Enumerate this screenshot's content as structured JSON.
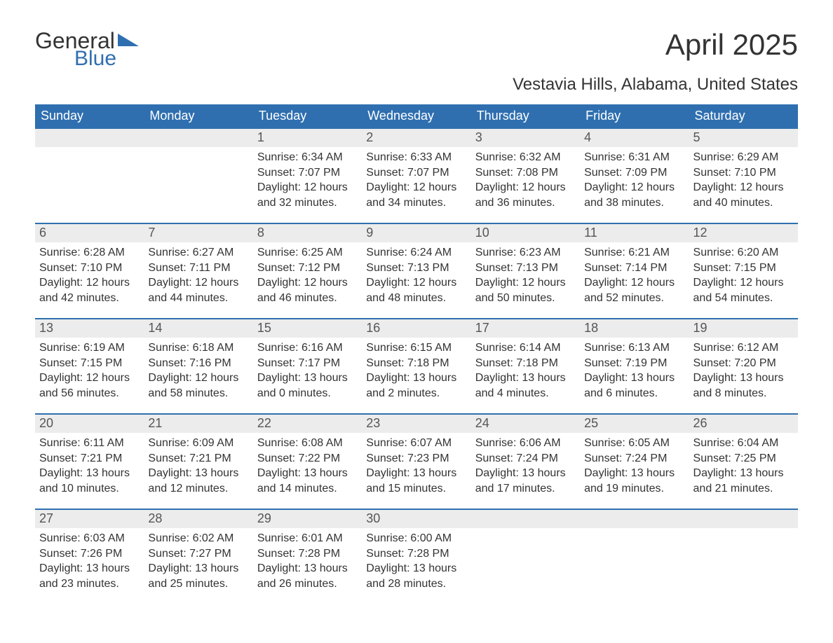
{
  "logo": {
    "text1": "General",
    "text2": "Blue",
    "tri_color": "#2f6fb0"
  },
  "title": "April 2025",
  "subtitle": "Vestavia Hills, Alabama, United States",
  "colors": {
    "header_bg": "#2f6fb0",
    "header_text": "#ffffff",
    "daynum_bg": "#ececec",
    "daynum_border": "#2f6fb0",
    "body_text": "#333333",
    "page_bg": "#ffffff"
  },
  "weekdays": [
    "Sunday",
    "Monday",
    "Tuesday",
    "Wednesday",
    "Thursday",
    "Friday",
    "Saturday"
  ],
  "weeks": [
    [
      null,
      null,
      {
        "n": "1",
        "sunrise": "6:34 AM",
        "sunset": "7:07 PM",
        "dl": "12 hours and 32 minutes."
      },
      {
        "n": "2",
        "sunrise": "6:33 AM",
        "sunset": "7:07 PM",
        "dl": "12 hours and 34 minutes."
      },
      {
        "n": "3",
        "sunrise": "6:32 AM",
        "sunset": "7:08 PM",
        "dl": "12 hours and 36 minutes."
      },
      {
        "n": "4",
        "sunrise": "6:31 AM",
        "sunset": "7:09 PM",
        "dl": "12 hours and 38 minutes."
      },
      {
        "n": "5",
        "sunrise": "6:29 AM",
        "sunset": "7:10 PM",
        "dl": "12 hours and 40 minutes."
      }
    ],
    [
      {
        "n": "6",
        "sunrise": "6:28 AM",
        "sunset": "7:10 PM",
        "dl": "12 hours and 42 minutes."
      },
      {
        "n": "7",
        "sunrise": "6:27 AM",
        "sunset": "7:11 PM",
        "dl": "12 hours and 44 minutes."
      },
      {
        "n": "8",
        "sunrise": "6:25 AM",
        "sunset": "7:12 PM",
        "dl": "12 hours and 46 minutes."
      },
      {
        "n": "9",
        "sunrise": "6:24 AM",
        "sunset": "7:13 PM",
        "dl": "12 hours and 48 minutes."
      },
      {
        "n": "10",
        "sunrise": "6:23 AM",
        "sunset": "7:13 PM",
        "dl": "12 hours and 50 minutes."
      },
      {
        "n": "11",
        "sunrise": "6:21 AM",
        "sunset": "7:14 PM",
        "dl": "12 hours and 52 minutes."
      },
      {
        "n": "12",
        "sunrise": "6:20 AM",
        "sunset": "7:15 PM",
        "dl": "12 hours and 54 minutes."
      }
    ],
    [
      {
        "n": "13",
        "sunrise": "6:19 AM",
        "sunset": "7:15 PM",
        "dl": "12 hours and 56 minutes."
      },
      {
        "n": "14",
        "sunrise": "6:18 AM",
        "sunset": "7:16 PM",
        "dl": "12 hours and 58 minutes."
      },
      {
        "n": "15",
        "sunrise": "6:16 AM",
        "sunset": "7:17 PM",
        "dl": "13 hours and 0 minutes."
      },
      {
        "n": "16",
        "sunrise": "6:15 AM",
        "sunset": "7:18 PM",
        "dl": "13 hours and 2 minutes."
      },
      {
        "n": "17",
        "sunrise": "6:14 AM",
        "sunset": "7:18 PM",
        "dl": "13 hours and 4 minutes."
      },
      {
        "n": "18",
        "sunrise": "6:13 AM",
        "sunset": "7:19 PM",
        "dl": "13 hours and 6 minutes."
      },
      {
        "n": "19",
        "sunrise": "6:12 AM",
        "sunset": "7:20 PM",
        "dl": "13 hours and 8 minutes."
      }
    ],
    [
      {
        "n": "20",
        "sunrise": "6:11 AM",
        "sunset": "7:21 PM",
        "dl": "13 hours and 10 minutes."
      },
      {
        "n": "21",
        "sunrise": "6:09 AM",
        "sunset": "7:21 PM",
        "dl": "13 hours and 12 minutes."
      },
      {
        "n": "22",
        "sunrise": "6:08 AM",
        "sunset": "7:22 PM",
        "dl": "13 hours and 14 minutes."
      },
      {
        "n": "23",
        "sunrise": "6:07 AM",
        "sunset": "7:23 PM",
        "dl": "13 hours and 15 minutes."
      },
      {
        "n": "24",
        "sunrise": "6:06 AM",
        "sunset": "7:24 PM",
        "dl": "13 hours and 17 minutes."
      },
      {
        "n": "25",
        "sunrise": "6:05 AM",
        "sunset": "7:24 PM",
        "dl": "13 hours and 19 minutes."
      },
      {
        "n": "26",
        "sunrise": "6:04 AM",
        "sunset": "7:25 PM",
        "dl": "13 hours and 21 minutes."
      }
    ],
    [
      {
        "n": "27",
        "sunrise": "6:03 AM",
        "sunset": "7:26 PM",
        "dl": "13 hours and 23 minutes."
      },
      {
        "n": "28",
        "sunrise": "6:02 AM",
        "sunset": "7:27 PM",
        "dl": "13 hours and 25 minutes."
      },
      {
        "n": "29",
        "sunrise": "6:01 AM",
        "sunset": "7:28 PM",
        "dl": "13 hours and 26 minutes."
      },
      {
        "n": "30",
        "sunrise": "6:00 AM",
        "sunset": "7:28 PM",
        "dl": "13 hours and 28 minutes."
      },
      null,
      null,
      null
    ]
  ],
  "labels": {
    "sunrise": "Sunrise: ",
    "sunset": "Sunset: ",
    "daylight": "Daylight: "
  }
}
